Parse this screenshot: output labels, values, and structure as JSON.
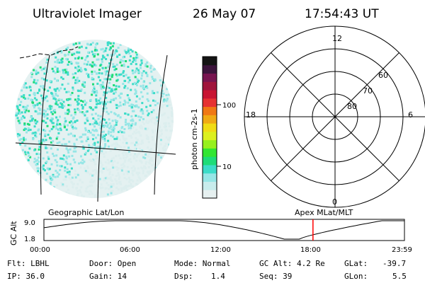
{
  "header": {
    "instrument": "Ultraviolet Imager",
    "date": "26 May 07",
    "time": "17:54:43 UT"
  },
  "colorbar": {
    "unit_label": "photon cm-2s-1",
    "ticks": [
      "100",
      "10"
    ],
    "palette": [
      "#e6f0f0",
      "#c8ecec",
      "#96e6e6",
      "#3cdcc8",
      "#1edc78",
      "#32e632",
      "#96f01e",
      "#dcf01e",
      "#f0dc14",
      "#f0aa14",
      "#f07814",
      "#e63232",
      "#c81432",
      "#a0143c",
      "#781450",
      "#3c143c",
      "#141414"
    ]
  },
  "image": {
    "dominant_colors": [
      "#3cdcc8",
      "#96e6e6",
      "#1edc78",
      "#dceeee"
    ]
  },
  "polar": {
    "mlt_labels": [
      "12",
      "18",
      "6",
      "0"
    ],
    "lat_labels": [
      "60",
      "70",
      "80"
    ]
  },
  "altitude_plot": {
    "ylabel": "GC Alt",
    "yticks": [
      "9.0",
      "1.8"
    ],
    "left_title": "Geographic Lat/Lon",
    "right_title": "Apex MLat/MLT",
    "xticks": [
      "00:00",
      "06:00",
      "12:00",
      "18:00",
      "23:59"
    ],
    "marker_time_hours": 17.91,
    "marker_color": "#ff0000"
  },
  "info": {
    "filter": "Flt: LBHL",
    "ip": "IP: 36.0",
    "door": "Door: Open",
    "gain": "Gain: 14",
    "mode": "Mode: Normal",
    "dsp_label": "Dsp:",
    "dsp_value": "1.4",
    "gc_alt": "GC Alt: 4.2 Re",
    "seq": "Seq: 39",
    "glat_label": "GLat:",
    "glat_value": "-39.7",
    "glon_label": "GLon:",
    "glon_value": "5.5"
  }
}
